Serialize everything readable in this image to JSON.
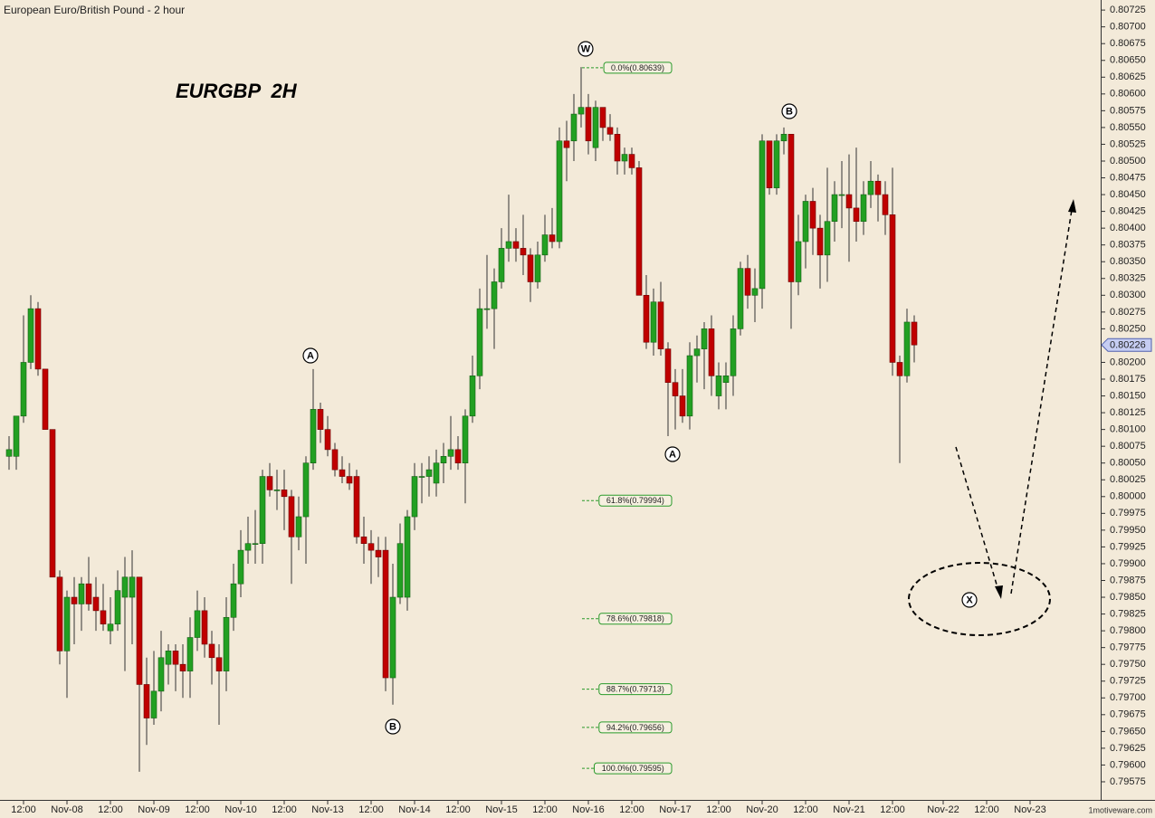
{
  "chart_data": {
    "type": "candlestick",
    "title": "European Euro/British Pound - 2 hour",
    "symbol_label": "EURGBP  2H",
    "watermark": "1motiveware.com",
    "last_price": 0.80226,
    "up_color": "#22a022",
    "down_color": "#c00000",
    "wave_labels": [
      "W",
      "A",
      "B",
      "A",
      "B",
      "X"
    ],
    "fib_levels": [
      {
        "label": "0.0%(0.80639)",
        "value": 0.80639
      },
      {
        "label": "61.8%(0.79994)",
        "value": 0.79994
      },
      {
        "label": "78.6%(0.79818)",
        "value": 0.79818
      },
      {
        "label": "88.7%(0.79713)",
        "value": 0.79713
      },
      {
        "label": "94.2%(0.79656)",
        "value": 0.79656
      },
      {
        "label": "100.0%(0.79595)",
        "value": 0.79595
      }
    ],
    "xlim": [
      -1.25,
      150.75
    ],
    "xticks": [
      {
        "value": 2,
        "label": "12:00"
      },
      {
        "value": 8,
        "label": "Nov-08"
      },
      {
        "value": 14,
        "label": "12:00"
      },
      {
        "value": 20,
        "label": "Nov-09"
      },
      {
        "value": 26,
        "label": "12:00"
      },
      {
        "value": 32,
        "label": "Nov-10"
      },
      {
        "value": 38,
        "label": "12:00"
      },
      {
        "value": 44,
        "label": "Nov-13"
      },
      {
        "value": 50,
        "label": "12:00"
      },
      {
        "value": 56,
        "label": "Nov-14"
      },
      {
        "value": 62,
        "label": "12:00"
      },
      {
        "value": 68,
        "label": "Nov-15"
      },
      {
        "value": 74,
        "label": "12:00"
      },
      {
        "value": 80,
        "label": "Nov-16"
      },
      {
        "value": 86,
        "label": "12:00"
      },
      {
        "value": 92,
        "label": "Nov-17"
      },
      {
        "value": 98,
        "label": "12:00"
      },
      {
        "value": 104,
        "label": "Nov-20"
      },
      {
        "value": 110,
        "label": "12:00"
      },
      {
        "value": 116,
        "label": "Nov-21"
      },
      {
        "value": 122,
        "label": "12:00"
      },
      {
        "value": 129,
        "label": "Nov-22"
      },
      {
        "value": 135,
        "label": "12:00"
      },
      {
        "value": 141,
        "label": "Nov-23"
      }
    ],
    "ylim": [
      0.79548,
      0.8074
    ],
    "yticks": [
      0.79575,
      {
        "value": 0.796,
        "label": "0.79600"
      },
      0.79625,
      {
        "value": 0.7965,
        "label": "0.79650"
      },
      0.79675,
      {
        "value": 0.797,
        "label": "0.79700"
      },
      0.79725,
      {
        "value": 0.7975,
        "label": "0.79750"
      },
      0.79775,
      {
        "value": 0.798,
        "label": "0.79800"
      },
      0.79825,
      {
        "value": 0.7985,
        "label": "0.79850"
      },
      0.79875,
      {
        "value": 0.799,
        "label": "0.79900"
      },
      0.79925,
      {
        "value": 0.7995,
        "label": "0.79950"
      },
      0.79975,
      {
        "value": 0.8,
        "label": "0.80000"
      },
      0.80025,
      {
        "value": 0.8005,
        "label": "0.80050"
      },
      0.80075,
      {
        "value": 0.801,
        "label": "0.80100"
      },
      0.80125,
      {
        "value": 0.8015,
        "label": "0.80150"
      },
      0.80175,
      {
        "value": 0.802,
        "label": "0.80200"
      },
      0.80225,
      {
        "value": 0.8025,
        "label": "0.80250"
      },
      0.80275,
      {
        "value": 0.803,
        "label": "0.80300"
      },
      0.80325,
      {
        "value": 0.8035,
        "label": "0.80350"
      },
      0.80375,
      {
        "value": 0.804,
        "label": "0.80400"
      },
      0.80425,
      {
        "value": 0.8045,
        "label": "0.80450"
      },
      0.80475,
      {
        "value": 0.805,
        "label": "0.80500"
      },
      0.80525,
      {
        "value": 0.8055,
        "label": "0.80550"
      },
      0.80575,
      {
        "value": 0.806,
        "label": "0.80600"
      },
      0.80625,
      {
        "value": 0.8065,
        "label": "0.80650"
      },
      0.80675,
      {
        "value": 0.807,
        "label": "0.80700"
      },
      0.80725
    ],
    "open": [
      0.8006,
      0.8006,
      0.8012,
      0.802,
      0.8028,
      0.8019,
      0.801,
      0.7988,
      0.7977,
      0.7985,
      0.7984,
      0.7987,
      0.7985,
      0.7983,
      0.798,
      0.7981,
      0.7985,
      0.7985,
      0.7988,
      0.7972,
      0.7967,
      0.7971,
      0.7975,
      0.7977,
      0.7975,
      0.7974,
      0.7979,
      0.7983,
      0.7978,
      0.7976,
      0.7974,
      0.7982,
      0.7987,
      0.7992,
      0.7993,
      0.7993,
      0.8003,
      0.8001,
      0.8001,
      0.8,
      0.7994,
      0.7997,
      0.8005,
      0.8013,
      0.801,
      0.8007,
      0.8004,
      0.8003,
      0.8003,
      0.7994,
      0.7993,
      0.7992,
      0.7992,
      0.7973,
      0.7985,
      0.7985,
      0.7997,
      0.8003,
      0.8003,
      0.8002,
      0.8005,
      0.8006,
      0.8007,
      0.8005,
      0.8012,
      0.8018,
      0.8028,
      0.8028,
      0.8032,
      0.8037,
      0.8038,
      0.8037,
      0.8036,
      0.8032,
      0.8036,
      0.8039,
      0.8038,
      0.8053,
      0.8053,
      0.8057,
      0.8058,
      0.8052,
      0.8058,
      0.8055,
      0.8054,
      0.805,
      0.8051,
      0.8049,
      0.803,
      0.8023,
      0.8029,
      0.8022,
      0.8017,
      0.8015,
      0.8012,
      0.8021,
      0.8022,
      0.8025,
      0.8015,
      0.8017,
      0.8018,
      0.8025,
      0.8034,
      0.803,
      0.8031,
      0.8053,
      0.8046,
      0.8053,
      0.8054,
      0.8032,
      0.8038,
      0.8044,
      0.804,
      0.8036,
      0.8041,
      0.8045,
      0.8045,
      0.8043,
      0.8041,
      0.8045,
      0.8047,
      0.8045,
      0.8042,
      0.802,
      0.8018,
      0.8026
    ],
    "high": [
      0.8009,
      0.8012,
      0.8027,
      0.803,
      0.8029,
      0.8019,
      0.801,
      0.7989,
      0.7986,
      0.7988,
      0.7988,
      0.7991,
      0.7988,
      0.7987,
      0.7985,
      0.7989,
      0.7991,
      0.7992,
      0.7988,
      0.7976,
      0.7977,
      0.798,
      0.7978,
      0.7978,
      0.7978,
      0.7982,
      0.7986,
      0.7985,
      0.798,
      0.7978,
      0.7985,
      0.799,
      0.7995,
      0.7997,
      0.7998,
      0.8004,
      0.8005,
      0.8004,
      0.8004,
      0.8001,
      0.8,
      0.8006,
      0.8019,
      0.8014,
      0.8012,
      0.8008,
      0.8006,
      0.8005,
      0.8004,
      0.7997,
      0.7995,
      0.7994,
      0.7994,
      0.799,
      0.7996,
      0.7998,
      0.8005,
      0.8005,
      0.8006,
      0.8007,
      0.8008,
      0.8012,
      0.8009,
      0.8013,
      0.8021,
      0.8031,
      0.8036,
      0.8034,
      0.804,
      0.8045,
      0.804,
      0.8042,
      0.8037,
      0.8038,
      0.8042,
      0.8043,
      0.8055,
      0.8056,
      0.806,
      0.8064,
      0.806,
      0.8059,
      0.8058,
      0.8057,
      0.8055,
      0.8052,
      0.8052,
      0.805,
      0.8033,
      0.8031,
      0.8032,
      0.8023,
      0.8019,
      0.8019,
      0.8023,
      0.8024,
      0.8026,
      0.8027,
      0.802,
      0.802,
      0.8027,
      0.8035,
      0.8036,
      0.8034,
      0.8054,
      0.8053,
      0.8054,
      0.8055,
      0.8054,
      0.8042,
      0.8045,
      0.8046,
      0.8042,
      0.8049,
      0.8047,
      0.805,
      0.8051,
      0.8052,
      0.8047,
      0.805,
      0.8048,
      0.8047,
      0.8049,
      0.8021,
      0.8028,
      0.8027
    ],
    "low": [
      0.8004,
      0.8004,
      0.8011,
      0.8019,
      0.8018,
      0.801,
      0.7988,
      0.7975,
      0.797,
      0.7978,
      0.798,
      0.7983,
      0.798,
      0.798,
      0.7978,
      0.798,
      0.7974,
      0.7978,
      0.7959,
      0.7963,
      0.7966,
      0.7968,
      0.7972,
      0.7971,
      0.797,
      0.797,
      0.7977,
      0.7976,
      0.7972,
      0.7966,
      0.7971,
      0.798,
      0.7985,
      0.799,
      0.799,
      0.799,
      0.8,
      0.7998,
      0.7995,
      0.7987,
      0.7992,
      0.799,
      0.8004,
      0.8008,
      0.8006,
      0.8003,
      0.8002,
      0.8001,
      0.7993,
      0.799,
      0.7987,
      0.7988,
      0.7971,
      0.7969,
      0.7984,
      0.7983,
      0.7995,
      0.7999,
      0.8,
      0.8,
      0.8002,
      0.8004,
      0.8004,
      0.7999,
      0.8011,
      0.8016,
      0.8025,
      0.8022,
      0.8031,
      0.8035,
      0.8035,
      0.8033,
      0.8029,
      0.8031,
      0.8035,
      0.8037,
      0.8037,
      0.8047,
      0.805,
      0.8055,
      0.8051,
      0.805,
      0.8053,
      0.8053,
      0.8048,
      0.8048,
      0.8048,
      0.803,
      0.8022,
      0.8021,
      0.8021,
      0.8009,
      0.801,
      0.8011,
      0.801,
      0.8017,
      0.8016,
      0.8015,
      0.8013,
      0.8013,
      0.8015,
      0.8024,
      0.8028,
      0.8026,
      0.8028,
      0.8045,
      0.8045,
      0.8051,
      0.8025,
      0.803,
      0.8034,
      0.8036,
      0.8031,
      0.8032,
      0.8038,
      0.804,
      0.8035,
      0.8038,
      0.8039,
      0.8043,
      0.8041,
      0.8039,
      0.8018,
      0.8005,
      0.8017,
      0.802
    ],
    "close": [
      0.8007,
      0.8012,
      0.802,
      0.8028,
      0.8019,
      0.801,
      0.7988,
      0.7977,
      0.7985,
      0.7984,
      0.7987,
      0.7984,
      0.7983,
      0.7981,
      0.7981,
      0.7986,
      0.7988,
      0.7988,
      0.7972,
      0.7967,
      0.7971,
      0.7976,
      0.7977,
      0.7975,
      0.7974,
      0.7979,
      0.7983,
      0.7978,
      0.7976,
      0.7974,
      0.7982,
      0.7987,
      0.7992,
      0.7993,
      0.7993,
      0.8003,
      0.8001,
      0.8001,
      0.8,
      0.7994,
      0.7997,
      0.8005,
      0.8013,
      0.801,
      0.8007,
      0.8004,
      0.8003,
      0.8002,
      0.7994,
      0.7993,
      0.7992,
      0.7991,
      0.7973,
      0.7985,
      0.7993,
      0.7997,
      0.8003,
      0.8003,
      0.8004,
      0.8005,
      0.8006,
      0.8007,
      0.8005,
      0.8012,
      0.8018,
      0.8028,
      0.8028,
      0.8032,
      0.8037,
      0.8038,
      0.8037,
      0.8036,
      0.8032,
      0.8036,
      0.8039,
      0.8038,
      0.8053,
      0.8052,
      0.8057,
      0.8058,
      0.8053,
      0.8058,
      0.8055,
      0.8054,
      0.805,
      0.8051,
      0.8049,
      0.803,
      0.8023,
      0.8029,
      0.8022,
      0.8017,
      0.8015,
      0.8012,
      0.8021,
      0.8022,
      0.8025,
      0.8018,
      0.8018,
      0.8018,
      0.8025,
      0.8034,
      0.803,
      0.8031,
      0.8053,
      0.8046,
      0.8053,
      0.8054,
      0.8032,
      0.8038,
      0.8044,
      0.804,
      0.8036,
      0.8041,
      0.8045,
      0.8045,
      0.8043,
      0.8041,
      0.8045,
      0.8047,
      0.8045,
      0.8042,
      0.802,
      0.8018,
      0.8026,
      0.80226
    ]
  }
}
